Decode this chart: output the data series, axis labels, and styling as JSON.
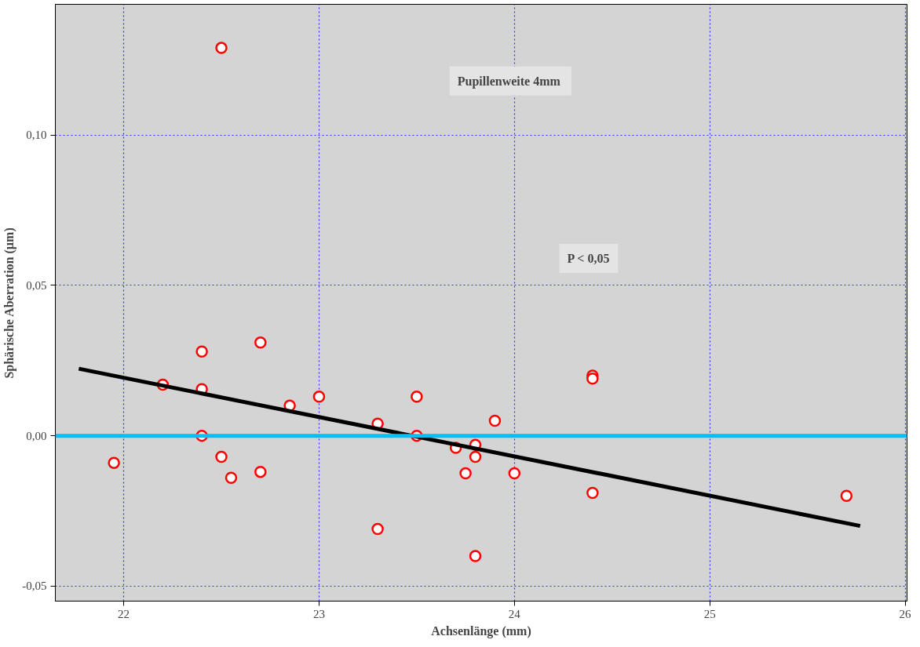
{
  "chart_data": {
    "type": "scatter",
    "xlabel": "Achsenlänge (mm)",
    "ylabel": "Sphärische Aberration (µm)",
    "annotations": [
      "Pupillenweite  4mm",
      "P < 0,05"
    ],
    "xlim": [
      21.65,
      26.01
    ],
    "ylim": [
      -0.055,
      0.1435
    ],
    "xticks": [
      22,
      23,
      24,
      25,
      26
    ],
    "yticks": [
      {
        "value": -0.05,
        "label": "-0,05"
      },
      {
        "value": 0,
        "label": "0,00"
      },
      {
        "value": 0.05,
        "label": "0,05"
      },
      {
        "value": 0.1,
        "label": "0,10"
      }
    ],
    "grid": true,
    "series": [
      {
        "marker": "circle",
        "color": "#ff0000",
        "x": [
          22.5,
          21.95,
          22.2,
          22.4,
          22.4,
          22.4,
          22.5,
          22.55,
          22.7,
          22.7,
          22.85,
          23.0,
          23.3,
          23.3,
          23.5,
          23.5,
          23.7,
          23.75,
          23.8,
          23.8,
          23.8,
          23.9,
          24.0,
          24.4,
          24.4,
          24.4,
          25.7
        ],
        "values": [
          0.129,
          -0.009,
          0.017,
          0.028,
          0.0155,
          0.0,
          -0.007,
          -0.014,
          0.031,
          -0.012,
          0.01,
          0.013,
          0.004,
          -0.031,
          0.013,
          0.0,
          -0.004,
          -0.0125,
          -0.003,
          -0.007,
          -0.04,
          0.005,
          -0.0125,
          0.02,
          0.019,
          -0.019,
          -0.02
        ]
      },
      {
        "type": "line",
        "color": "#000000",
        "x": [
          21.77,
          25.77
        ],
        "values": [
          0.0223,
          -0.03
        ]
      }
    ],
    "ref_lines": [
      {
        "axis": "y",
        "value": 0,
        "color": "#00bfff"
      }
    ]
  }
}
